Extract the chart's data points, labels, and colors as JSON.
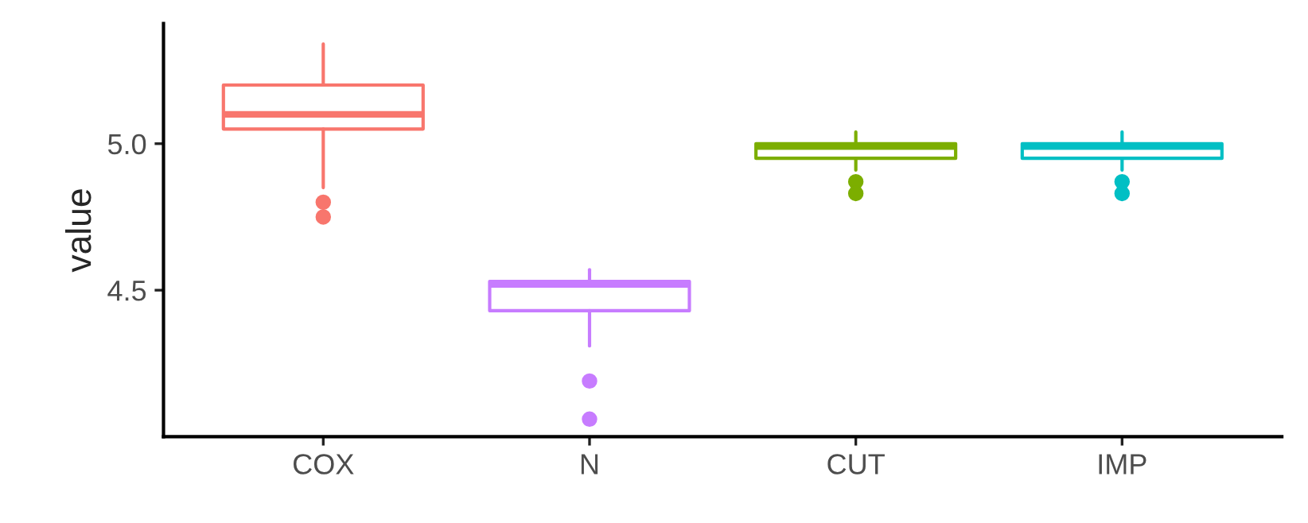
{
  "chart_data": {
    "type": "box",
    "ylabel": "value",
    "categories": [
      "COX",
      "N",
      "CUT",
      "IMP"
    ],
    "colors": [
      "#f8766d",
      "#c77cff",
      "#7cae00",
      "#00bfc4"
    ],
    "boxes": [
      {
        "low": 4.85,
        "q1": 5.05,
        "median": 5.1,
        "q3": 5.2,
        "high": 5.34,
        "outliers": [
          4.8,
          4.75
        ]
      },
      {
        "low": 4.31,
        "q1": 4.43,
        "median": 4.52,
        "q3": 4.53,
        "high": 4.57,
        "outliers": [
          4.19,
          4.06
        ]
      },
      {
        "low": 4.91,
        "q1": 4.95,
        "median": 4.99,
        "q3": 5.0,
        "high": 5.04,
        "outliers": [
          4.87,
          4.83
        ]
      },
      {
        "low": 4.91,
        "q1": 4.95,
        "median": 4.99,
        "q3": 5.0,
        "high": 5.04,
        "outliers": [
          4.87,
          4.83
        ]
      }
    ],
    "ylim": [
      4.0,
      5.41
    ],
    "yticks": [
      4.5,
      {
        "value": 5.0,
        "label": "5.0"
      }
    ],
    "grid": false,
    "legend": false
  }
}
